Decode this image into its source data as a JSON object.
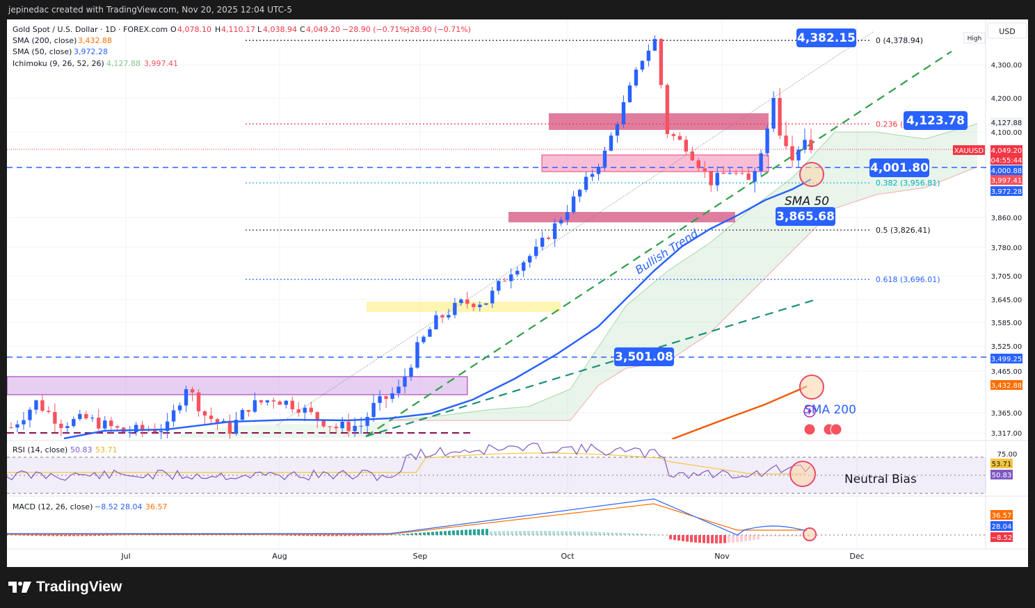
{
  "header": {
    "credit": "jepinedac created with TradingView.com, Nov 20, 2025 12:04 UTC-5"
  },
  "brand": {
    "logo_text": "TradingView",
    "logo_icon": "tradingview-logo-icon"
  },
  "legend": {
    "symbol": "Gold Spot / U.S. Dollar · 1D · FOREX.com",
    "o_label": "O",
    "o_value": "4,078.10",
    "h_label": "H",
    "h_value": "4,110.17",
    "l_label": "L",
    "l_value": "4,038.94",
    "c_label": "C",
    "c_value": "4,049.20",
    "change": "−28.90 (−0.71%)",
    "change2": "−28.90 (−0.71%)",
    "sma200_label": "SMA (200, close)",
    "sma200_value": "3,432.88",
    "sma50_label": "SMA (50, close)",
    "sma50_value": "3,972.28",
    "ichimoku_label": "Ichimoku (9, 26, 52, 26)",
    "ichimoku_v1": "4,127.88",
    "ichimoku_v2": "3,997.41"
  },
  "currency": "USD",
  "high_tag": "High",
  "price_axis": {
    "ticks": [
      "4,300.00",
      "4,200.00",
      "4,100.00",
      "3,860.00",
      "3,780.00",
      "3,705.00",
      "3,645.00",
      "3,585.00",
      "3,525.00",
      "3,465.00",
      "3,365.00",
      "3,317.00"
    ],
    "tags": [
      {
        "text": "4,127.88",
        "bg": "#f2f3f5",
        "fg": "#131722"
      },
      {
        "text": "XAUUSD",
        "bg": "#f23645",
        "fg": "#ffffff"
      },
      {
        "text": "4,049.20",
        "bg": "#f23645",
        "fg": "#ffffff"
      },
      {
        "text": "04:55:44",
        "bg": "#f23645",
        "fg": "#ffffff"
      },
      {
        "text": "4,000.88",
        "bg": "#2962ff",
        "fg": "#ffffff"
      },
      {
        "text": "3,997.41",
        "bg": "#f7525f",
        "fg": "#ffffff"
      },
      {
        "text": "3,972.28",
        "bg": "#2962ff",
        "fg": "#ffffff"
      },
      {
        "text": "3,499.25",
        "bg": "#2962ff",
        "fg": "#ffffff"
      },
      {
        "text": "3,432.88",
        "bg": "#ff6d00",
        "fg": "#ffffff"
      }
    ]
  },
  "time_axis": [
    "Jul",
    "Aug",
    "Sep",
    "Oct",
    "Nov",
    "Dec"
  ],
  "fib_levels": [
    {
      "label": "0 (4,378.94)",
      "price": 4378.94,
      "color": "#131722"
    },
    {
      "label": "0.236 (4,123.78)",
      "price": 4123.78,
      "color": "#f23645"
    },
    {
      "label": "0.382 (3,956.81)",
      "price": 3956.81,
      "color": "#00acc1"
    },
    {
      "label": "0.5 (3,826.41)",
      "price": 3826.41,
      "color": "#131722"
    },
    {
      "label": "0.618 (3,696.01)",
      "price": 3696.01,
      "color": "#2962ff"
    }
  ],
  "callouts": [
    {
      "text": "4,382.15"
    },
    {
      "text": "4,123.78"
    },
    {
      "text": "4,001.80"
    },
    {
      "text": "3,865.68"
    },
    {
      "text": "3,501.08"
    }
  ],
  "annotations": {
    "sma50": "SMA 50",
    "sma200": "SMA 200",
    "trend": "Bullish Trend",
    "bias": "Neutral Bias"
  },
  "rsi": {
    "label": "RSI (14, close)",
    "v1": "50.83",
    "v2": "53.71",
    "tick": "75.00",
    "tag1": "53.71",
    "tag2": "50.83"
  },
  "macd": {
    "label": "MACD (12, 26, close)",
    "v1": "−8.52",
    "v2": "28.04",
    "v3": "36.57",
    "tag1": "36.57",
    "tag2": "28.04",
    "tag3": "−8.52"
  },
  "colors": {
    "up": "#2962ff",
    "down": "#f7525f",
    "sma50": "#2962ff",
    "sma200": "#f05a0a",
    "trend": "#2e9e45",
    "zone_dark": "#d6527f",
    "zone_light": "#f7a8c8",
    "zone_purple": "#c994e0",
    "zone_yellow": "#fff3a0",
    "accent": "#2962ff"
  },
  "chart_data": {
    "type": "candlestick",
    "title": "Gold Spot / U.S. Dollar · 1D · FOREX.com",
    "ylim": [
      3300,
      4420
    ],
    "ohlc": []
  }
}
